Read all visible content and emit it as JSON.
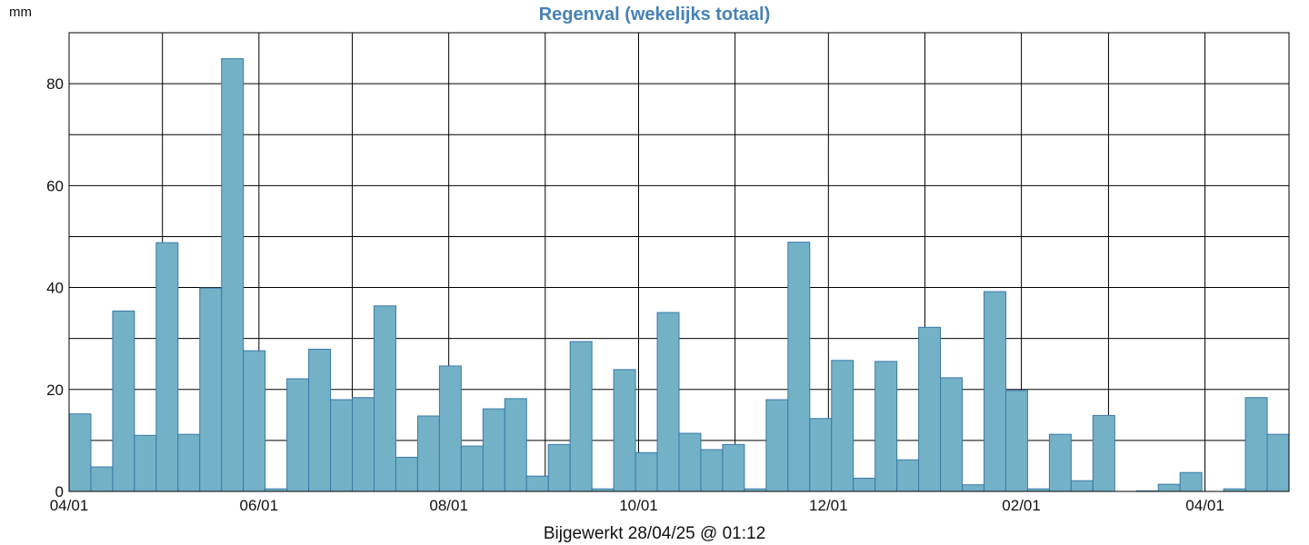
{
  "chart_data": {
    "type": "bar",
    "title": "Regenval (wekelijks totaal)",
    "ylabel": "mm",
    "footer": "Bijgewerkt 28/04/25 @ 01:12",
    "xlim": [
      "2024-04-01",
      "2025-04-28"
    ],
    "ylim": [
      0,
      90
    ],
    "yticks": [
      0,
      20,
      40,
      60,
      80
    ],
    "xticks": [
      {
        "date": "2024-04-01",
        "label": "04/01"
      },
      {
        "date": "2024-06-01",
        "label": "06/01"
      },
      {
        "date": "2024-08-01",
        "label": "08/01"
      },
      {
        "date": "2024-10-01",
        "label": "10/01"
      },
      {
        "date": "2024-12-01",
        "label": "12/01"
      },
      {
        "date": "2025-02-01",
        "label": "02/01"
      },
      {
        "date": "2025-04-01",
        "label": "04/01"
      }
    ],
    "grid": true,
    "colors": {
      "title": "#4682b4",
      "bar_fill": "#73b2c6",
      "bar_stroke": "#3a78a8",
      "grid": "#000000"
    },
    "week_start": [
      "2024-04-01",
      "2024-04-08",
      "2024-04-15",
      "2024-04-22",
      "2024-04-29",
      "2024-05-06",
      "2024-05-13",
      "2024-05-20",
      "2024-05-27",
      "2024-06-03",
      "2024-06-10",
      "2024-06-17",
      "2024-06-24",
      "2024-07-01",
      "2024-07-08",
      "2024-07-15",
      "2024-07-22",
      "2024-07-29",
      "2024-08-05",
      "2024-08-12",
      "2024-08-19",
      "2024-08-26",
      "2024-09-02",
      "2024-09-09",
      "2024-09-16",
      "2024-09-23",
      "2024-09-30",
      "2024-10-07",
      "2024-10-14",
      "2024-10-21",
      "2024-10-28",
      "2024-11-04",
      "2024-11-11",
      "2024-11-18",
      "2024-11-25",
      "2024-12-02",
      "2024-12-09",
      "2024-12-16",
      "2024-12-23",
      "2024-12-30",
      "2025-01-06",
      "2025-01-13",
      "2025-01-20",
      "2025-01-27",
      "2025-02-03",
      "2025-02-10",
      "2025-02-17",
      "2025-02-24",
      "2025-03-03",
      "2025-03-10",
      "2025-03-17",
      "2025-03-24",
      "2025-03-31",
      "2025-04-07",
      "2025-04-14",
      "2025-04-21"
    ],
    "values": [
      15.2,
      4.8,
      35.4,
      11.0,
      48.8,
      11.2,
      39.9,
      84.9,
      27.6,
      0.5,
      22.1,
      27.9,
      18.0,
      18.4,
      36.4,
      6.7,
      14.8,
      24.6,
      8.9,
      16.2,
      18.2,
      3.0,
      9.2,
      29.4,
      0.5,
      23.9,
      7.6,
      35.1,
      11.4,
      8.2,
      9.2,
      0.5,
      18.0,
      48.9,
      14.3,
      25.7,
      2.6,
      25.5,
      6.2,
      32.2,
      22.3,
      1.3,
      39.2,
      19.8,
      0.5,
      11.2,
      2.1,
      14.9,
      0,
      0.1,
      1.4,
      3.7,
      0,
      0.5,
      18.4,
      11.2
    ]
  }
}
